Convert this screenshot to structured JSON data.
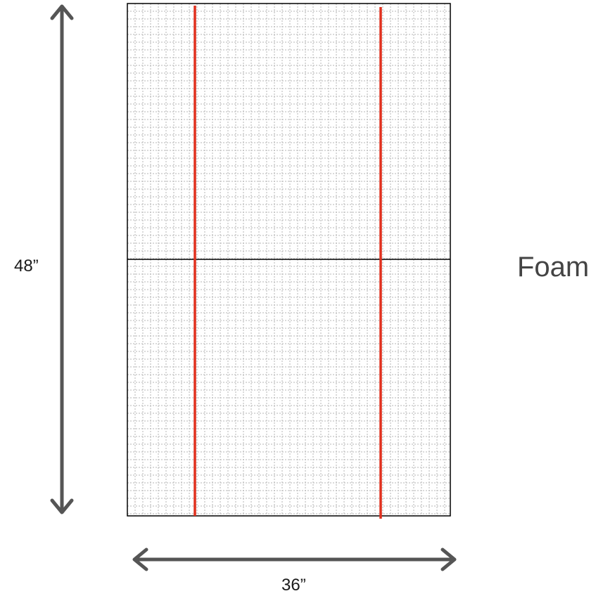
{
  "height_label": "48”",
  "width_label": "36”",
  "material_label": "Foam",
  "colors": {
    "cut_line": "#e0301e",
    "arrow": "#555555",
    "outline": "#000000",
    "grid": "#b5b5b5"
  }
}
